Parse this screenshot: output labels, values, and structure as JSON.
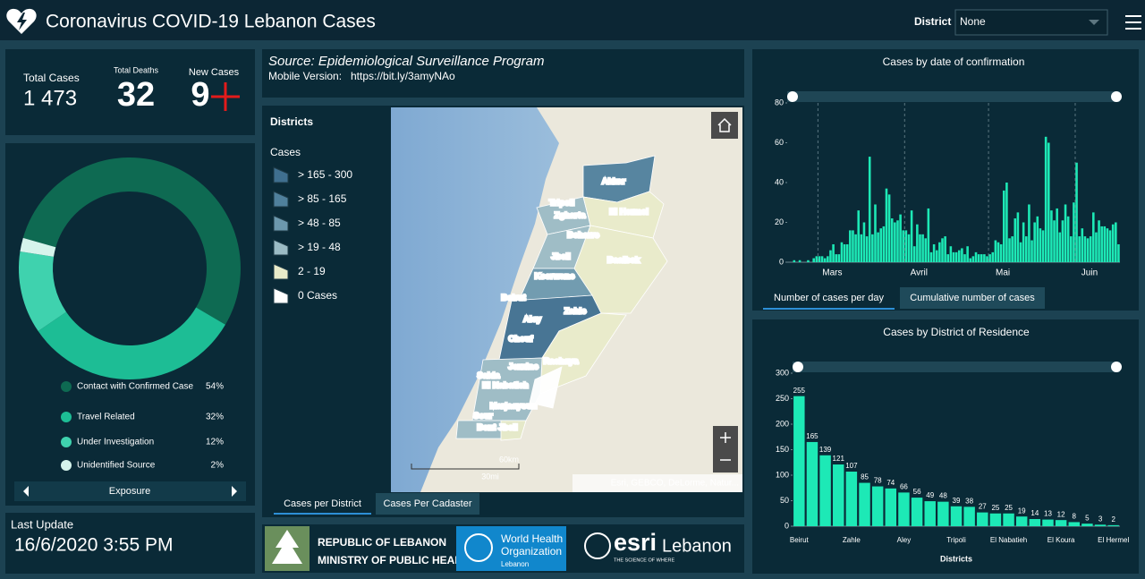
{
  "header": {
    "title": "Coronavirus COVID-19 Lebanon Cases",
    "district_label": "District",
    "district_value": "None"
  },
  "stats": {
    "total_cases_label": "Total Cases",
    "total_cases": "1 473",
    "total_deaths_label": "Total Deaths",
    "total_deaths": 32,
    "new_cases_label": "New Cases",
    "new_cases": 9
  },
  "last_update": {
    "label": "Last Update",
    "value": "16/6/2020 3:55 PM"
  },
  "source": {
    "text": "Source: Epidemiological Surveillance Program",
    "mobile_label": "Mobile Version:",
    "link": "https://bit.ly/3amyNAo"
  },
  "map": {
    "legend_title": "Districts",
    "legend_subtitle": "Cases",
    "legend": [
      {
        "label": "> 165 - 300",
        "color": "#3f6f8f"
      },
      {
        "label": "> 85 - 165",
        "color": "#4f809c"
      },
      {
        "label": "> 48 - 85",
        "color": "#6c98ad"
      },
      {
        "label": "> 19 - 48",
        "color": "#9bbbc4"
      },
      {
        "label": "2 - 19",
        "color": "#e9ebc9"
      },
      {
        "label": "0 Cases",
        "color": "#ffffff"
      }
    ],
    "labels": [
      "Akkar",
      "Tripoli",
      "Zgharta",
      "El Hermel",
      "Bcharre",
      "Jbeil",
      "Baalbek",
      "Kesrwane",
      "Beirut",
      "Zahle",
      "Aley",
      "Chouf",
      "Rachaya",
      "Jezzine",
      "Saida",
      "El Nabatieh",
      "Marjaayoun",
      "Sour",
      "Bent Jbeil"
    ],
    "scale_km": "60km",
    "scale_mi": "30mi",
    "attribution": "Esri, GEBCO, DeLorme, Natur...",
    "tabs": [
      "Cases per District",
      "Cases Per Cadaster"
    ]
  },
  "logos": {
    "moph_line1": "REPUBLIC OF LEBANON",
    "moph_line2": "MINISTRY OF PUBLIC HEALTH",
    "who_line1": "World Health",
    "who_line2": "Organization",
    "who_line3": "Lebanon",
    "esri": "esri",
    "esri_country": "Lebanon",
    "esri_tagline": "THE SCIENCE OF WHERE"
  },
  "chart_data": [
    {
      "type": "pie",
      "title": "Exposure",
      "categories": [
        "Contact with Confirmed Case",
        "Travel Related",
        "Under Investigation",
        "Unidentified Source"
      ],
      "values": [
        54,
        32,
        12,
        2
      ],
      "value_labels": [
        "54%",
        "32%",
        "12%",
        "2%"
      ],
      "colors": [
        "#0e6a52",
        "#1dbd95",
        "#3fd2ae",
        "#d6f4ec"
      ]
    },
    {
      "type": "bar",
      "title": "Cases by date of confirmation",
      "color": "#1de9b6",
      "ylim": [
        0,
        80
      ],
      "yticks": [
        0,
        20,
        40,
        60,
        80
      ],
      "categories": [
        null,
        null,
        null,
        null,
        null,
        null,
        null,
        null,
        null,
        null,
        null,
        "Mars",
        null,
        null,
        null,
        null,
        null,
        null,
        null,
        null,
        null,
        null,
        null,
        null,
        null,
        null,
        null,
        null,
        null,
        null,
        null,
        null,
        null,
        null,
        null,
        null,
        null,
        null,
        null,
        null,
        null,
        null,
        "Avril",
        null,
        null,
        null,
        null,
        null,
        null,
        null,
        null,
        null,
        null,
        null,
        null,
        null,
        null,
        null,
        null,
        null,
        null,
        null,
        null,
        null,
        null,
        null,
        null,
        null,
        null,
        null,
        null,
        null,
        "Mai",
        null,
        null,
        null,
        null,
        null,
        null,
        null,
        null,
        null,
        null,
        null,
        null,
        null,
        null,
        null,
        null,
        null,
        null,
        null,
        null,
        null,
        null,
        null,
        null,
        null,
        null,
        null,
        null,
        null,
        null,
        "Juin",
        null,
        null,
        null,
        null,
        null,
        null,
        null,
        null,
        null,
        null,
        null,
        null,
        null,
        null,
        null
      ],
      "values": [
        0,
        0,
        1,
        0,
        1,
        0,
        0,
        1,
        0,
        2,
        3,
        3,
        3,
        2,
        3,
        6,
        9,
        4,
        4,
        10,
        9,
        9,
        16,
        16,
        14,
        26,
        14,
        20,
        13,
        53,
        14,
        29,
        15,
        17,
        18,
        37,
        34,
        22,
        20,
        21,
        24,
        16,
        16,
        14,
        26,
        8,
        19,
        14,
        14,
        12,
        27,
        5,
        9,
        6,
        10,
        12,
        13,
        4,
        8,
        5,
        5,
        6,
        7,
        4,
        8,
        2,
        3,
        5,
        4,
        4,
        4,
        3,
        4,
        5,
        11,
        10,
        9,
        36,
        40,
        12,
        13,
        22,
        25,
        10,
        20,
        13,
        29,
        11,
        20,
        23,
        17,
        16,
        63,
        60,
        26,
        21,
        27,
        15,
        21,
        29,
        23,
        13,
        30,
        50,
        13,
        17,
        13,
        12,
        13,
        25,
        15,
        21,
        18,
        18,
        17,
        16,
        19,
        20,
        9
      ],
      "tabs": [
        "Number of cases per day",
        "Cumulative number of cases"
      ]
    },
    {
      "type": "bar",
      "title": "Cases by District of Residence",
      "color": "#1de9b6",
      "ylim": [
        0,
        300
      ],
      "yticks": [
        0,
        50,
        100,
        150,
        200,
        250,
        300
      ],
      "xlabel": "Districts",
      "categories": [
        "Beirut",
        null,
        null,
        null,
        "Zahle",
        null,
        null,
        null,
        "Aley",
        null,
        null,
        null,
        "Tripoli",
        null,
        null,
        null,
        "El Nabatieh",
        null,
        null,
        null,
        "El Koura",
        null,
        null,
        null,
        "El Hermel"
      ],
      "values": [
        255,
        165,
        139,
        121,
        107,
        85,
        78,
        74,
        66,
        56,
        49,
        48,
        39,
        38,
        27,
        25,
        25,
        19,
        14,
        13,
        12,
        8,
        5,
        3,
        2
      ]
    }
  ]
}
